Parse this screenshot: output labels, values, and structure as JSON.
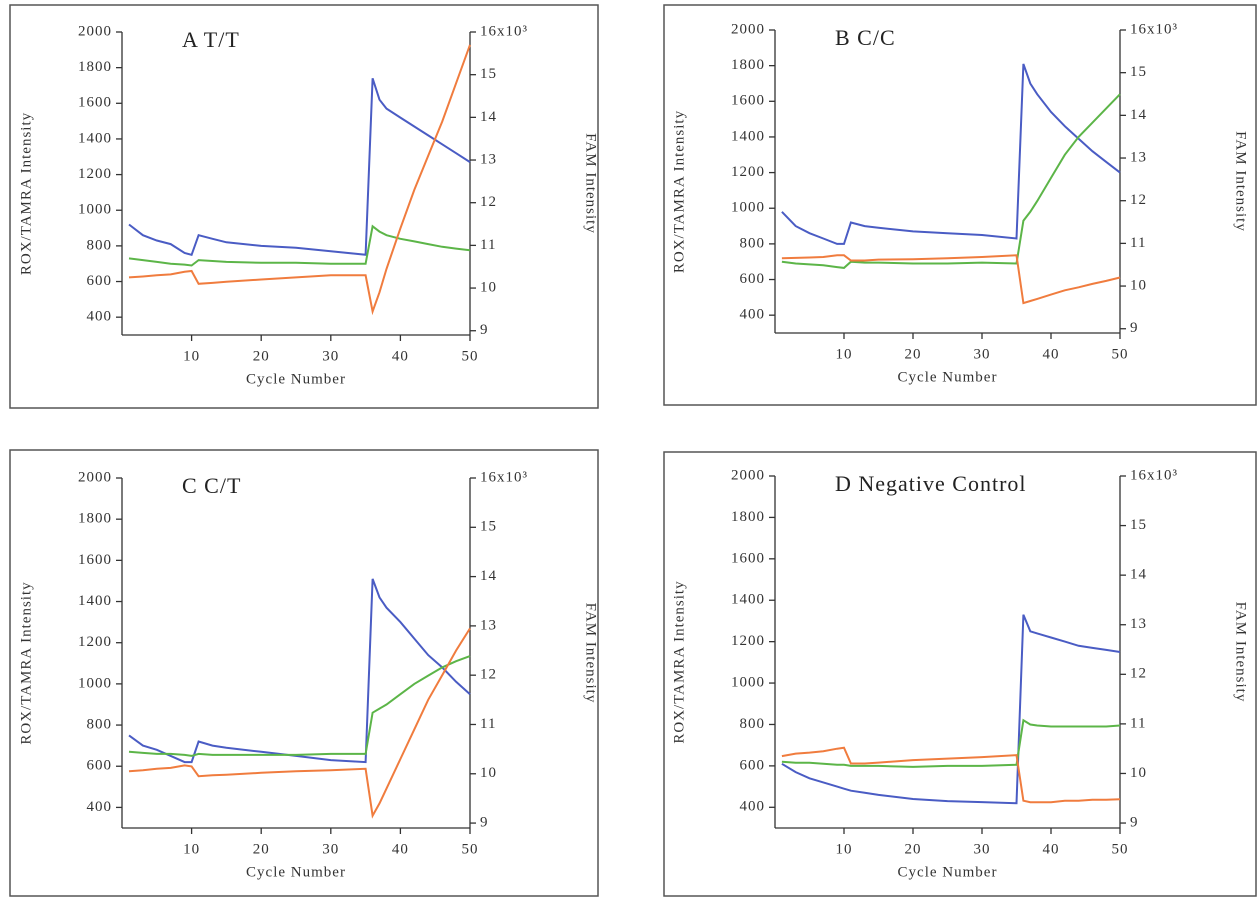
{
  "chart_data": [
    {
      "type": "line",
      "title": "A   T/T",
      "xlabel": "Cycle   Number",
      "ylabel": "ROX/TAMRA   Intensity",
      "y2label": "FAM   Intensity",
      "x": [
        1,
        3,
        5,
        7,
        9,
        10,
        11,
        13,
        15,
        20,
        25,
        30,
        35,
        36,
        37,
        38,
        40,
        42,
        44,
        46,
        48,
        50
      ],
      "xlim": [
        0,
        50
      ],
      "xticks": [
        10,
        20,
        30,
        40,
        50
      ],
      "ylim": [
        300,
        2000
      ],
      "yticks": [
        400,
        600,
        800,
        1000,
        1200,
        1400,
        1600,
        1800,
        2000
      ],
      "y2lim": [
        8.9,
        16
      ],
      "y2ticks": [
        9,
        10,
        11,
        12,
        13,
        14,
        15,
        {
          "value": 16,
          "label": "16x10³"
        }
      ],
      "series": [
        {
          "color": "#4a5cc4",
          "values": [
            920,
            860,
            830,
            810,
            760,
            750,
            860,
            840,
            820,
            800,
            790,
            770,
            750,
            1740,
            1620,
            1570,
            1520,
            1470,
            1420,
            1370,
            1320,
            1270
          ]
        },
        {
          "color": "#5cb548",
          "values": [
            730,
            720,
            710,
            700,
            695,
            690,
            720,
            715,
            710,
            705,
            705,
            700,
            700,
            910,
            880,
            860,
            840,
            825,
            810,
            795,
            785,
            775
          ]
        },
        {
          "color": "#f07c3e",
          "axis": "y2",
          "values": [
            10.25,
            10.27,
            10.3,
            10.32,
            10.38,
            10.4,
            10.1,
            10.12,
            10.15,
            10.2,
            10.25,
            10.3,
            10.3,
            9.45,
            9.9,
            10.45,
            11.4,
            12.3,
            13.1,
            13.9,
            14.8,
            15.7
          ]
        }
      ]
    },
    {
      "type": "line",
      "title": "B   C/C",
      "xlabel": "Cycle   Number",
      "ylabel": "ROX/TAMRA   Intensity",
      "y2label": "FAM   Intensity",
      "x": [
        1,
        3,
        5,
        7,
        9,
        10,
        11,
        13,
        15,
        20,
        25,
        30,
        35,
        36,
        37,
        38,
        40,
        42,
        44,
        46,
        48,
        50
      ],
      "xlim": [
        0,
        50
      ],
      "xticks": [
        10,
        20,
        30,
        40,
        50
      ],
      "ylim": [
        300,
        2000
      ],
      "yticks": [
        400,
        600,
        800,
        1000,
        1200,
        1400,
        1600,
        1800,
        2000
      ],
      "y2lim": [
        8.9,
        16
      ],
      "y2ticks": [
        9,
        10,
        11,
        12,
        13,
        14,
        15,
        {
          "value": 16,
          "label": "16x10³"
        }
      ],
      "series": [
        {
          "color": "#4a5cc4",
          "values": [
            980,
            900,
            860,
            830,
            800,
            800,
            920,
            900,
            890,
            870,
            860,
            850,
            830,
            1810,
            1700,
            1640,
            1540,
            1460,
            1390,
            1320,
            1260,
            1200
          ]
        },
        {
          "color": "#5cb548",
          "values": [
            700,
            690,
            685,
            680,
            670,
            665,
            700,
            695,
            695,
            690,
            690,
            695,
            690,
            930,
            980,
            1040,
            1170,
            1300,
            1400,
            1480,
            1560,
            1640
          ]
        },
        {
          "color": "#f07c3e",
          "axis": "y2",
          "values": [
            10.65,
            10.66,
            10.67,
            10.68,
            10.72,
            10.72,
            10.6,
            10.6,
            10.62,
            10.63,
            10.65,
            10.68,
            10.72,
            9.6,
            9.65,
            9.7,
            9.8,
            9.9,
            9.97,
            10.05,
            10.12,
            10.2
          ]
        }
      ]
    },
    {
      "type": "line",
      "title": "C   C/T",
      "xlabel": "Cycle   Number",
      "ylabel": "ROX/TAMRA   Intensity",
      "y2label": "FAM   Intensity",
      "x": [
        1,
        3,
        5,
        7,
        9,
        10,
        11,
        13,
        15,
        20,
        25,
        30,
        35,
        36,
        37,
        38,
        40,
        42,
        44,
        46,
        48,
        50
      ],
      "xlim": [
        0,
        50
      ],
      "xticks": [
        10,
        20,
        30,
        40,
        50
      ],
      "ylim": [
        300,
        2000
      ],
      "yticks": [
        400,
        600,
        800,
        1000,
        1200,
        1400,
        1600,
        1800,
        2000
      ],
      "y2lim": [
        8.9,
        16
      ],
      "y2ticks": [
        9,
        10,
        11,
        12,
        13,
        14,
        15,
        {
          "value": 16,
          "label": "16x10³"
        }
      ],
      "series": [
        {
          "color": "#4a5cc4",
          "values": [
            750,
            700,
            680,
            650,
            620,
            620,
            720,
            700,
            690,
            670,
            650,
            630,
            620,
            1510,
            1420,
            1370,
            1300,
            1220,
            1140,
            1080,
            1010,
            950
          ]
        },
        {
          "color": "#5cb548",
          "values": [
            670,
            665,
            660,
            660,
            655,
            650,
            660,
            655,
            655,
            655,
            655,
            660,
            660,
            860,
            880,
            900,
            950,
            1000,
            1040,
            1080,
            1110,
            1135
          ]
        },
        {
          "color": "#f07c3e",
          "axis": "y2",
          "values": [
            10.05,
            10.07,
            10.1,
            10.12,
            10.17,
            10.15,
            9.95,
            9.97,
            9.98,
            10.02,
            10.05,
            10.07,
            10.1,
            9.15,
            9.4,
            9.7,
            10.3,
            10.9,
            11.5,
            12.0,
            12.5,
            12.95
          ]
        }
      ]
    },
    {
      "type": "line",
      "title": "D   Negative   Control",
      "xlabel": "Cycle   Number",
      "ylabel": "ROX/TAMRA   Intensity",
      "y2label": "FAM   Intensity",
      "x": [
        1,
        3,
        5,
        7,
        9,
        10,
        11,
        13,
        15,
        20,
        25,
        30,
        35,
        36,
        37,
        38,
        40,
        42,
        44,
        46,
        48,
        50
      ],
      "xlim": [
        0,
        50
      ],
      "xticks": [
        10,
        20,
        30,
        40,
        50
      ],
      "ylim": [
        300,
        2000
      ],
      "yticks": [
        400,
        600,
        800,
        1000,
        1200,
        1400,
        1600,
        1800,
        2000
      ],
      "y2lim": [
        8.9,
        16
      ],
      "y2ticks": [
        9,
        10,
        11,
        12,
        13,
        14,
        15,
        {
          "value": 16,
          "label": "16x10³"
        }
      ],
      "series": [
        {
          "color": "#4a5cc4",
          "values": [
            610,
            570,
            540,
            520,
            500,
            490,
            480,
            470,
            460,
            440,
            430,
            425,
            420,
            1330,
            1250,
            1240,
            1220,
            1200,
            1180,
            1170,
            1160,
            1150
          ]
        },
        {
          "color": "#5cb548",
          "values": [
            620,
            615,
            615,
            610,
            605,
            605,
            600,
            600,
            600,
            595,
            600,
            600,
            605,
            820,
            800,
            795,
            790,
            790,
            790,
            790,
            790,
            795
          ]
        },
        {
          "color": "#f07c3e",
          "axis": "y2",
          "values": [
            10.35,
            10.4,
            10.42,
            10.45,
            10.5,
            10.52,
            10.2,
            10.2,
            10.22,
            10.27,
            10.3,
            10.33,
            10.37,
            9.45,
            9.42,
            9.42,
            9.42,
            9.45,
            9.45,
            9.47,
            9.47,
            9.48
          ]
        }
      ]
    }
  ]
}
